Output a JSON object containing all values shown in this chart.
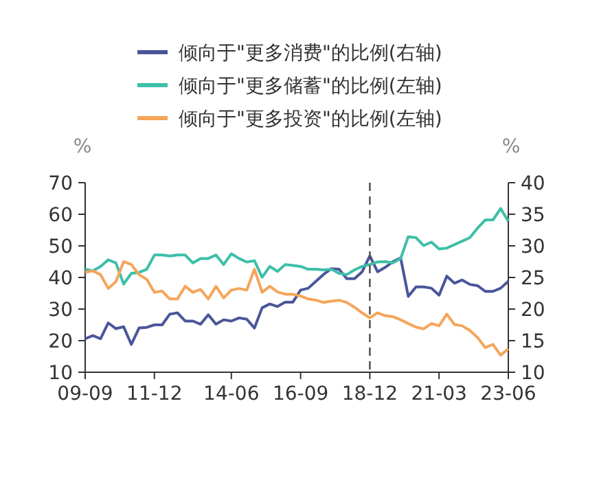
{
  "chart_data": {
    "type": "line",
    "legend": "top",
    "ylabel": "%",
    "y2label": "%",
    "categories": [
      "09-09",
      null,
      null,
      null,
      null,
      null,
      null,
      null,
      null,
      "11-12",
      null,
      null,
      null,
      null,
      null,
      null,
      null,
      null,
      null,
      "14-06",
      null,
      null,
      null,
      null,
      null,
      null,
      null,
      null,
      "16-09",
      null,
      null,
      null,
      null,
      null,
      null,
      null,
      null,
      "18-12",
      null,
      null,
      null,
      null,
      null,
      null,
      null,
      null,
      "21-03",
      null,
      null,
      null,
      null,
      null,
      null,
      null,
      null,
      "23-06"
    ],
    "ylim": [
      10,
      70
    ],
    "yticks": [
      10,
      20,
      30,
      40,
      50,
      60,
      70
    ],
    "y2lim": [
      10,
      40
    ],
    "y2ticks": [
      10,
      15,
      20,
      25,
      30,
      35,
      40
    ],
    "ref_lines": [
      {
        "axis": "x",
        "value": "18-12",
        "color": "#555555",
        "line_style": "dashed"
      }
    ],
    "series": [
      {
        "name": "倾向于\"更多消费\"的比例(右轴)",
        "color": "#4a5699",
        "axis": "y2",
        "values": [
          15.3,
          15.8,
          15.3,
          17.8,
          16.9,
          17.2,
          14.4,
          17.0,
          17.1,
          17.5,
          17.5,
          19.2,
          19.4,
          18.1,
          18.1,
          17.6,
          19.1,
          17.6,
          18.3,
          18.1,
          18.6,
          18.4,
          17.0,
          20.2,
          20.8,
          20.4,
          21.1,
          21.1,
          23.0,
          23.3,
          24.4,
          25.5,
          26.4,
          26.3,
          24.8,
          24.8,
          25.9,
          28.4,
          25.9,
          26.6,
          27.5,
          28.1,
          22.0,
          23.5,
          23.5,
          23.3,
          22.2,
          25.2,
          24.1,
          24.6,
          23.9,
          23.7,
          22.8,
          22.8,
          23.3,
          24.4
        ]
      },
      {
        "name": "倾向于\"更多储蓄\"的比例(左轴)",
        "color": "#3dbfa8",
        "values": [
          42.6,
          42.1,
          43.5,
          45.6,
          44.6,
          37.9,
          41.3,
          41.6,
          42.6,
          47.1,
          47.1,
          46.8,
          47.1,
          47.1,
          44.6,
          46.0,
          46.0,
          47.1,
          44.1,
          47.5,
          46.0,
          44.9,
          45.3,
          40.1,
          43.5,
          41.9,
          44.1,
          43.8,
          43.5,
          42.6,
          42.6,
          42.4,
          42.6,
          41.3,
          40.9,
          42.4,
          43.5,
          44.1,
          44.9,
          45.0,
          44.6,
          46.0,
          52.9,
          52.6,
          50.1,
          51.2,
          49.0,
          49.3,
          50.4,
          51.5,
          52.6,
          55.6,
          58.2,
          58.2,
          61.8,
          57.8
        ]
      },
      {
        "name": "倾向于\"更多投资\"的比例(左轴)",
        "color": "#f5a55a",
        "values": [
          41.6,
          42.1,
          40.9,
          36.5,
          38.7,
          45.0,
          44.1,
          40.9,
          39.4,
          35.3,
          35.7,
          33.2,
          33.2,
          37.2,
          35.3,
          36.2,
          33.2,
          37.2,
          33.5,
          36.0,
          36.5,
          36.0,
          42.6,
          35.3,
          37.2,
          35.4,
          34.7,
          34.7,
          34.1,
          33.2,
          32.8,
          32.1,
          32.5,
          32.8,
          32.1,
          30.6,
          28.8,
          27.2,
          28.8,
          27.9,
          27.6,
          26.6,
          25.4,
          24.3,
          23.7,
          25.4,
          24.7,
          28.4,
          25.1,
          24.7,
          23.2,
          21.0,
          17.8,
          18.8,
          15.4,
          17.4
        ]
      }
    ]
  }
}
